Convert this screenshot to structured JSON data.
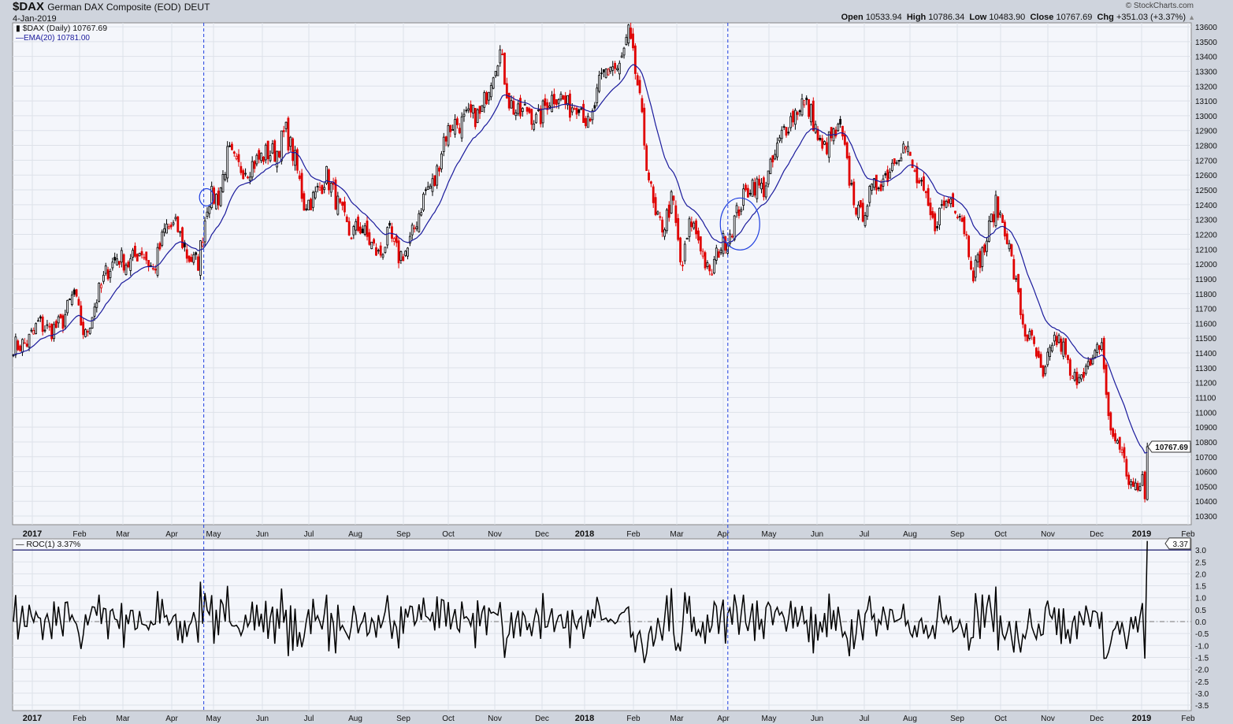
{
  "header": {
    "symbol": "$DAX",
    "name": "German DAX Composite (EOD)",
    "exchange": "DEUT",
    "date": "4-Jan-2019",
    "copyright": "© StockCharts.com",
    "open_label": "Open",
    "open": "10533.94",
    "high_label": "High",
    "high": "10786.34",
    "low_label": "Low",
    "low": "10483.90",
    "close_label": "Close",
    "close": "10767.69",
    "chg_label": "Chg",
    "chg": "+351.03 (+3.37%)"
  },
  "chart_data": [
    {
      "type": "candlestick",
      "legend": [
        "$DAX (Daily) 10767.69",
        "EMA(20) 10781.00"
      ],
      "last_value_tag": "10767.69",
      "ylim": [
        10250,
        13620
      ],
      "y_ticks": [
        10300,
        10400,
        10500,
        10600,
        10700,
        10800,
        10900,
        11000,
        11100,
        11200,
        11300,
        11400,
        11500,
        11600,
        11700,
        11800,
        11900,
        12000,
        12100,
        12200,
        12300,
        12400,
        12500,
        12600,
        12700,
        12800,
        12900,
        13000,
        13100,
        13200,
        13300,
        13400,
        13500,
        13600
      ],
      "x_ticks": [
        "2017",
        "Feb",
        "Mar",
        "Apr",
        "May",
        "Jun",
        "Jul",
        "Aug",
        "Sep",
        "Oct",
        "Nov",
        "Dec",
        "2018",
        "Feb",
        "Mar",
        "Apr",
        "May",
        "Jun",
        "Jul",
        "Aug",
        "Sep",
        "Oct",
        "Nov",
        "Dec",
        "2019",
        "Feb"
      ],
      "grid": true,
      "colors": {
        "up": "#000000",
        "down": "#e00000",
        "ema": "#1a1a9c",
        "annotation": "#1f3fe0"
      },
      "approx_weekly_closes": [
        {
          "month": "2016-12",
          "closes": [
            11450,
            11470
          ]
        },
        {
          "month": "2017-01",
          "closes": [
            11600,
            11550,
            11600,
            11800
          ]
        },
        {
          "month": "2017-02",
          "closes": [
            11500,
            11750,
            11950,
            12050
          ]
        },
        {
          "month": "2017-03",
          "closes": [
            12000,
            12100,
            11950,
            12250
          ]
        },
        {
          "month": "2017-04",
          "closes": [
            12250,
            12050,
            12000,
            12450
          ]
        },
        {
          "month": "2017-05",
          "closes": [
            12450,
            12750,
            12650,
            12650,
            12700
          ]
        },
        {
          "month": "2017-06",
          "closes": [
            12750,
            12750,
            12900,
            12700,
            12400
          ]
        },
        {
          "month": "2017-07",
          "closes": [
            12450,
            12600,
            12400,
            12200
          ]
        },
        {
          "month": "2017-08",
          "closes": [
            12250,
            12150,
            12050,
            12200,
            12050
          ]
        },
        {
          "month": "2017-09",
          "closes": [
            12100,
            12300,
            12500,
            12550,
            12850
          ]
        },
        {
          "month": "2017-10",
          "closes": [
            12950,
            12950,
            13000,
            13000,
            13250
          ]
        },
        {
          "month": "2017-11",
          "closes": [
            13450,
            13100,
            13000,
            13050,
            12950
          ]
        },
        {
          "month": "2017-12",
          "closes": [
            13100,
            13150,
            13050,
            13100
          ]
        },
        {
          "month": "2018-01",
          "closes": [
            12900,
            13200,
            13350,
            13300,
            13550
          ]
        },
        {
          "month": "2018-02",
          "closes": [
            13200,
            12700,
            12300,
            12250,
            12450
          ]
        },
        {
          "month": "2018-03",
          "closes": [
            11950,
            12300,
            12150,
            11900,
            12100
          ]
        },
        {
          "month": "2018-04",
          "closes": [
            12200,
            12400,
            12550,
            12500
          ]
        },
        {
          "month": "2018-05",
          "closes": [
            12700,
            12900,
            13000,
            13100,
            13000
          ]
        },
        {
          "month": "2018-06",
          "closes": [
            12750,
            12850,
            12900,
            12550,
            12300
          ]
        },
        {
          "month": "2018-07",
          "closes": [
            12450,
            12550,
            12600,
            12750,
            12800
          ]
        },
        {
          "month": "2018-08",
          "closes": [
            12600,
            12450,
            12250,
            12400,
            12450
          ]
        },
        {
          "month": "2018-09",
          "closes": [
            12300,
            11950,
            12100,
            12400
          ]
        },
        {
          "month": "2018-10",
          "closes": [
            12250,
            11900,
            11550,
            11450,
            11200
          ]
        },
        {
          "month": "2018-11",
          "closes": [
            11500,
            11450,
            11200,
            11300,
            11300
          ]
        },
        {
          "month": "2018-12",
          "closes": [
            11500,
            10850,
            10800,
            10550,
            10450
          ]
        },
        {
          "month": "2019-01",
          "daily_closes": [
            10580,
            10416,
            10767.69
          ]
        }
      ],
      "annotations": [
        {
          "type": "vline",
          "date": "2017-04-24"
        },
        {
          "type": "vline",
          "date": "2018-04-04"
        },
        {
          "type": "circle",
          "date": "2017-04-26",
          "price": 12450
        },
        {
          "type": "circle",
          "date": "2018-04-12",
          "price": 12270
        }
      ]
    },
    {
      "type": "line",
      "legend": "ROC(1) 3.37%",
      "last_value_tag": "3.37",
      "ylim": [
        -3.7,
        3.6
      ],
      "y_ticks": [
        3.0,
        2.5,
        2.0,
        1.5,
        1.0,
        0.5,
        0.0,
        -0.5,
        -1.0,
        -1.5,
        -2.0,
        -2.5,
        -3.0,
        -3.5
      ],
      "reference_lines": [
        3.0,
        0.0
      ],
      "x_ticks": [
        "2017",
        "Feb",
        "Mar",
        "Apr",
        "May",
        "Jun",
        "Jul",
        "Aug",
        "Sep",
        "Oct",
        "Nov",
        "Dec",
        "2018",
        "Feb",
        "Mar",
        "Apr",
        "May",
        "Jun",
        "Jul",
        "Aug",
        "Sep",
        "Oct",
        "Nov",
        "Dec",
        "2019",
        "Feb"
      ]
    }
  ]
}
